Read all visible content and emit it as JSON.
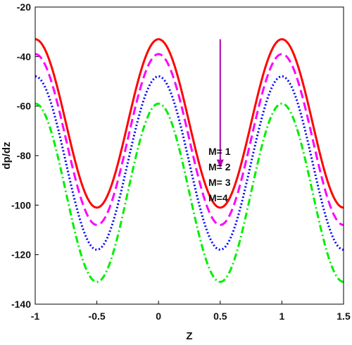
{
  "chart_data": {
    "type": "line",
    "title": "",
    "xlabel": "Z",
    "ylabel": "dp/dz",
    "xlim": [
      -1,
      1.5
    ],
    "ylim": [
      -140,
      -20
    ],
    "xticks": [
      -1,
      -0.5,
      0,
      0.5,
      1,
      1.5
    ],
    "yticks": [
      -20,
      -40,
      -60,
      -80,
      -100,
      -120,
      -140
    ],
    "xtick_labels": [
      "-1",
      "-0.5",
      "0",
      "0.5",
      "1",
      "1.5"
    ],
    "ytick_labels": [
      "-20",
      "-40",
      "-60",
      "-80",
      "-100",
      "-120",
      "-140"
    ],
    "grid": false,
    "series": [
      {
        "name": "M= 1",
        "color": "#ff0000",
        "style": "solid",
        "max": -33,
        "min": -101,
        "period": 1
      },
      {
        "name": "M= 2",
        "color": "#ff00ff",
        "style": "dashed",
        "max": -39,
        "min": -108,
        "period": 1
      },
      {
        "name": "M= 3",
        "color": "#0000ff",
        "style": "dotted",
        "max": -48,
        "min": -118,
        "period": 1
      },
      {
        "name": "M=4",
        "color": "#00ee00",
        "style": "dashdot",
        "max": -59,
        "min": -131,
        "period": 1
      }
    ],
    "annotation": {
      "labels": [
        "M= 1",
        "M= 2",
        "M= 3",
        "M=4"
      ],
      "arrow": {
        "x": 0.5,
        "y_from": -33,
        "y_to": -85,
        "color": "#b000b0"
      }
    }
  }
}
